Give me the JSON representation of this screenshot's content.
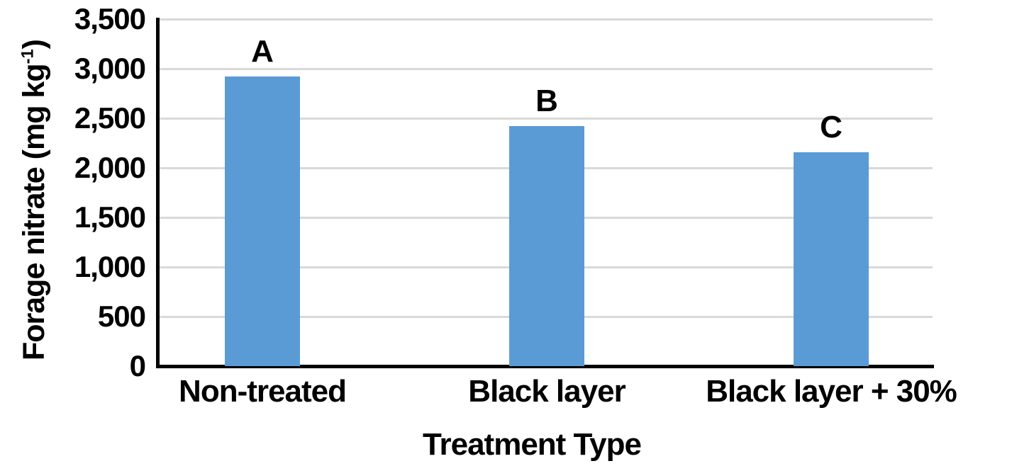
{
  "chart_data": {
    "type": "bar",
    "title": "",
    "categories": [
      "Non-treated",
      "Black layer",
      "Black layer + 30%"
    ],
    "values": [
      2920,
      2420,
      2160
    ],
    "bar_labels": [
      "A",
      "B",
      "C"
    ],
    "xlabel": "Treatment Type",
    "ylabel": "Forage nitrate (mg kg-1)",
    "ylabel_parts": {
      "pre": "Forage nitrate (mg kg",
      "sup": "-1",
      "post": ")"
    },
    "ylim": [
      0,
      3500
    ],
    "ytick_interval": 500,
    "yticks": [
      {
        "value": 0,
        "label": "0"
      },
      {
        "value": 500,
        "label": "500"
      },
      {
        "value": 1000,
        "label": "1,000"
      },
      {
        "value": 1500,
        "label": "1,500"
      },
      {
        "value": 2000,
        "label": "2,000"
      },
      {
        "value": 2500,
        "label": "2,500"
      },
      {
        "value": 3000,
        "label": "3,000"
      },
      {
        "value": 3500,
        "label": "3,500"
      }
    ],
    "grid": "horizontal",
    "legend": "none",
    "bar_color": "#5B9BD5",
    "gridline_color": "#D9D9D9",
    "axis_color": "#000000",
    "text_color": "#000000"
  }
}
